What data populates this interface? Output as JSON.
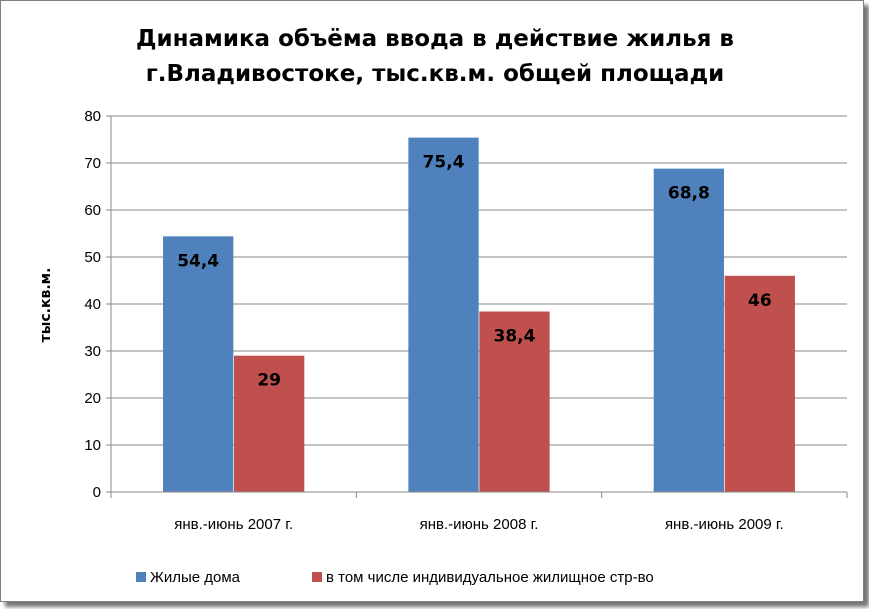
{
  "chart_data": {
    "type": "bar",
    "title_lines": [
      "Динамика объёма ввода в действие жилья в",
      "г.Владивостоке, тыс.кв.м. общей площади"
    ],
    "ylabel": "тыс.кв.м.",
    "xlabel": "",
    "ylim": [
      0,
      80
    ],
    "ytick_step": 10,
    "yticks": [
      "0",
      "10",
      "20",
      "30",
      "40",
      "50",
      "60",
      "70",
      "80"
    ],
    "grid": true,
    "legend_position": "bottom",
    "categories": [
      "янв.-июнь 2007 г.",
      "янв.-июнь 2008 г.",
      "янв.-июнь 2009 г."
    ],
    "series": [
      {
        "name": "Жилые дома",
        "color": "#4f81bd",
        "values": [
          54.4,
          75.4,
          68.8
        ],
        "labels": [
          "54,4",
          "75,4",
          "68,8"
        ]
      },
      {
        "name": "в том числе индивидуальное жилищное стр-во",
        "color": "#c0504d",
        "values": [
          29,
          38.4,
          46
        ],
        "labels": [
          "29",
          "38,4",
          "46"
        ]
      }
    ]
  }
}
